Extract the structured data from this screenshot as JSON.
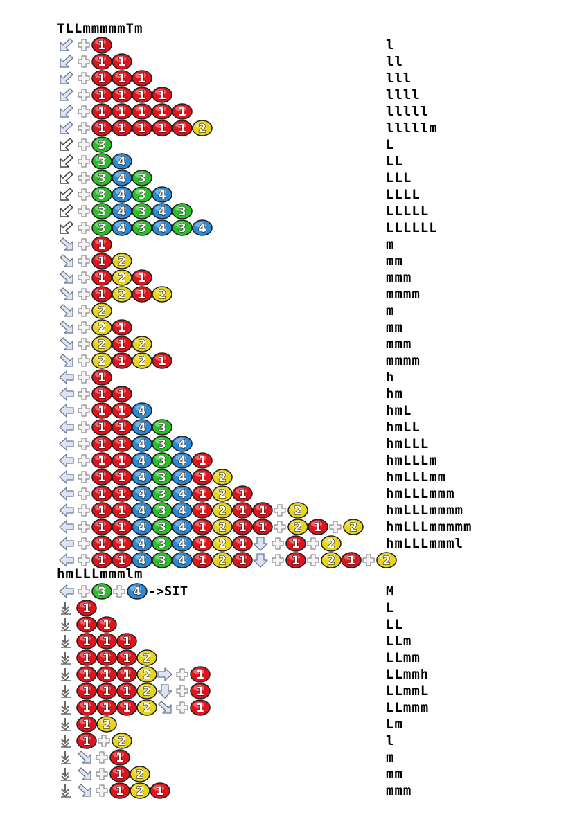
{
  "header_fragment": "TLLmmmmmTm",
  "section_heading": "hmLLLmmmlm",
  "sit_label": "->SIT",
  "colors": {
    "button_1": "#e0141c",
    "button_2": "#e8d41c",
    "button_3": "#2cbf28",
    "button_4": "#2a8ad8",
    "arrow_fill": "#dde4f4",
    "arrow_stroke": "#6a7890"
  },
  "rows": [
    {
      "seq": [
        "dl",
        "+",
        "1"
      ],
      "result": "l"
    },
    {
      "seq": [
        "dl",
        "+",
        "1",
        "1"
      ],
      "result": "ll"
    },
    {
      "seq": [
        "dl",
        "+",
        "1",
        "1",
        "1"
      ],
      "result": "lll"
    },
    {
      "seq": [
        "dl",
        "+",
        "1",
        "1",
        "1",
        "1"
      ],
      "result": "llll"
    },
    {
      "seq": [
        "dl",
        "+",
        "1",
        "1",
        "1",
        "1",
        "1"
      ],
      "result": "lllll"
    },
    {
      "seq": [
        "dl",
        "+",
        "1",
        "1",
        "1",
        "1",
        "1",
        "2"
      ],
      "result": "lllllm"
    },
    {
      "seq": [
        "dlb",
        "+",
        "3"
      ],
      "result": "L"
    },
    {
      "seq": [
        "dlb",
        "+",
        "3",
        "4"
      ],
      "result": "LL"
    },
    {
      "seq": [
        "dlb",
        "+",
        "3",
        "4",
        "3"
      ],
      "result": "LLL"
    },
    {
      "seq": [
        "dlb",
        "+",
        "3",
        "4",
        "3",
        "4"
      ],
      "result": "LLLL"
    },
    {
      "seq": [
        "dlb",
        "+",
        "3",
        "4",
        "3",
        "4",
        "3"
      ],
      "result": "LLLLL"
    },
    {
      "seq": [
        "dlb",
        "+",
        "3",
        "4",
        "3",
        "4",
        "3",
        "4"
      ],
      "result": "LLLLLL"
    },
    {
      "seq": [
        "drb",
        "+",
        "1"
      ],
      "result": "m"
    },
    {
      "seq": [
        "drb",
        "+",
        "1",
        "2"
      ],
      "result": "mm"
    },
    {
      "seq": [
        "drb",
        "+",
        "1",
        "2",
        "1"
      ],
      "result": "mmm"
    },
    {
      "seq": [
        "drb",
        "+",
        "1",
        "2",
        "1",
        "2"
      ],
      "result": "mmmm"
    },
    {
      "seq": [
        "drb",
        "+",
        "2"
      ],
      "result": "m"
    },
    {
      "seq": [
        "drb",
        "+",
        "2",
        "1"
      ],
      "result": "mm"
    },
    {
      "seq": [
        "drb",
        "+",
        "2",
        "1",
        "2"
      ],
      "result": "mmm"
    },
    {
      "seq": [
        "drb",
        "+",
        "2",
        "1",
        "2",
        "1"
      ],
      "result": "mmmm"
    },
    {
      "seq": [
        "l",
        "+",
        "1"
      ],
      "result": "h"
    },
    {
      "seq": [
        "l",
        "+",
        "1",
        "1"
      ],
      "result": "hm"
    },
    {
      "seq": [
        "l",
        "+",
        "1",
        "1",
        "4"
      ],
      "result": "hmL"
    },
    {
      "seq": [
        "l",
        "+",
        "1",
        "1",
        "4",
        "3"
      ],
      "result": "hmLL"
    },
    {
      "seq": [
        "l",
        "+",
        "1",
        "1",
        "4",
        "3",
        "4"
      ],
      "result": "hmLLL"
    },
    {
      "seq": [
        "l",
        "+",
        "1",
        "1",
        "4",
        "3",
        "4",
        "1"
      ],
      "result": "hmLLLm"
    },
    {
      "seq": [
        "l",
        "+",
        "1",
        "1",
        "4",
        "3",
        "4",
        "1",
        "2"
      ],
      "result": "hmLLLmm"
    },
    {
      "seq": [
        "l",
        "+",
        "1",
        "1",
        "4",
        "3",
        "4",
        "1",
        "2",
        "1"
      ],
      "result": "hmLLLmmm"
    },
    {
      "seq": [
        "l",
        "+",
        "1",
        "1",
        "4",
        "3",
        "4",
        "1",
        "2",
        "1",
        "1",
        "+",
        "2"
      ],
      "result": "hmLLLmmmm"
    },
    {
      "seq": [
        "l",
        "+",
        "1",
        "1",
        "4",
        "3",
        "4",
        "1",
        "2",
        "1",
        "1",
        "+",
        "2",
        "1",
        "+",
        "2"
      ],
      "result": "hmLLLmmmmm"
    },
    {
      "seq": [
        "l",
        "+",
        "1",
        "1",
        "4",
        "3",
        "4",
        "1",
        "2",
        "1",
        "d",
        "+",
        "1",
        "+",
        "2"
      ],
      "result": "hmLLLmmml"
    },
    {
      "seq": [
        "l",
        "+",
        "1",
        "1",
        "4",
        "3",
        "4",
        "1",
        "2",
        "1",
        "d",
        "+",
        "1",
        "+",
        "2",
        "1",
        "+",
        "2"
      ],
      "result": ""
    },
    {
      "seq": [
        "l",
        "+",
        "3",
        "+",
        "4",
        "SIT"
      ],
      "result": "M"
    },
    {
      "seq": [
        "dn",
        "1"
      ],
      "result": "L"
    },
    {
      "seq": [
        "dn",
        "1",
        "1"
      ],
      "result": "LL"
    },
    {
      "seq": [
        "dn",
        "1",
        "1",
        "1"
      ],
      "result": "LLm"
    },
    {
      "seq": [
        "dn",
        "1",
        "1",
        "1",
        "2"
      ],
      "result": "LLmm"
    },
    {
      "seq": [
        "dn",
        "1",
        "1",
        "1",
        "2",
        "r",
        "+",
        "1"
      ],
      "result": "LLmmh"
    },
    {
      "seq": [
        "dn",
        "1",
        "1",
        "1",
        "2",
        "d",
        "+",
        "1"
      ],
      "result": "LLmmL"
    },
    {
      "seq": [
        "dn",
        "1",
        "1",
        "1",
        "2",
        "drb",
        "+",
        "1"
      ],
      "result": "LLmmm"
    },
    {
      "seq": [
        "dn",
        "1",
        "2"
      ],
      "result": "Lm"
    },
    {
      "seq": [
        "dn",
        "1",
        "+",
        "2"
      ],
      "result": "l"
    },
    {
      "seq": [
        "dn",
        "drb",
        "+",
        "1"
      ],
      "result": "m"
    },
    {
      "seq": [
        "dn",
        "drb",
        "+",
        "1",
        "2"
      ],
      "result": "mm"
    },
    {
      "seq": [
        "dn",
        "drb",
        "+",
        "1",
        "2",
        "1"
      ],
      "result": "mmm"
    }
  ]
}
